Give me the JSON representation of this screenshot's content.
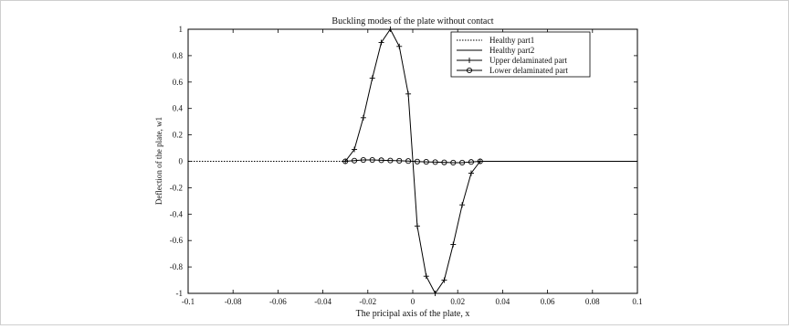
{
  "chart_data": {
    "type": "line",
    "title": "Buckling modes of the plate without contact",
    "xlabel": "The pricipal axis of the plate, x",
    "ylabel": "Deflection of the plate, w1",
    "xlim": [
      -0.1,
      0.1
    ],
    "ylim": [
      -1,
      1
    ],
    "xticks": [
      -0.1,
      -0.08,
      -0.06,
      -0.04,
      -0.02,
      0,
      0.02,
      0.04,
      0.06,
      0.08,
      0.1
    ],
    "xtick_labels": [
      "-0.1",
      "-0.08",
      "-0.06",
      "-0.04",
      "-0.02",
      "0",
      "0.02",
      "0.04",
      "0.06",
      "0.08",
      "0.1"
    ],
    "yticks": [
      -1,
      -0.8,
      -0.6,
      -0.4,
      -0.2,
      0,
      0.2,
      0.4,
      0.6,
      0.8,
      1
    ],
    "ytick_labels": [
      "-1",
      "-0.8",
      "-0.6",
      "-0.4",
      "-0.2",
      "0",
      "0.2",
      "0.4",
      "0.6",
      "0.8",
      "1"
    ],
    "grid": false,
    "legend_position": "top-right",
    "series": [
      {
        "name": "Healthy part1",
        "style": "dotted",
        "marker": "none",
        "x": [
          -0.1,
          -0.09,
          -0.08,
          -0.07,
          -0.06,
          -0.05,
          -0.04,
          -0.03
        ],
        "y": [
          0,
          0,
          0,
          0,
          0,
          0,
          0,
          0
        ]
      },
      {
        "name": "Healthy part2",
        "style": "solid",
        "marker": "none",
        "x": [
          0.03,
          0.04,
          0.05,
          0.06,
          0.07,
          0.08,
          0.09,
          0.1
        ],
        "y": [
          0,
          0,
          0,
          0,
          0,
          0,
          0,
          0
        ]
      },
      {
        "name": "Upper delaminated part",
        "style": "solid",
        "marker": "plus",
        "x": [
          -0.03,
          -0.026,
          -0.022,
          -0.018,
          -0.014,
          -0.01,
          -0.006,
          -0.002,
          0.002,
          0.006,
          0.01,
          0.014,
          0.018,
          0.022,
          0.026,
          0.03
        ],
        "y": [
          0,
          0.09,
          0.33,
          0.63,
          0.9,
          1.0,
          0.87,
          0.51,
          -0.49,
          -0.87,
          -1.0,
          -0.9,
          -0.63,
          -0.33,
          -0.09,
          0
        ]
      },
      {
        "name": "Lower delaminated part",
        "style": "solid",
        "marker": "circle",
        "x": [
          -0.03,
          -0.026,
          -0.022,
          -0.018,
          -0.014,
          -0.01,
          -0.006,
          -0.002,
          0.002,
          0.006,
          0.01,
          0.014,
          0.018,
          0.022,
          0.026,
          0.03
        ],
        "y": [
          0,
          0.005,
          0.01,
          0.01,
          0.008,
          0.006,
          0.004,
          0.002,
          -0.002,
          -0.004,
          -0.006,
          -0.008,
          -0.01,
          -0.01,
          -0.005,
          0
        ]
      }
    ]
  }
}
